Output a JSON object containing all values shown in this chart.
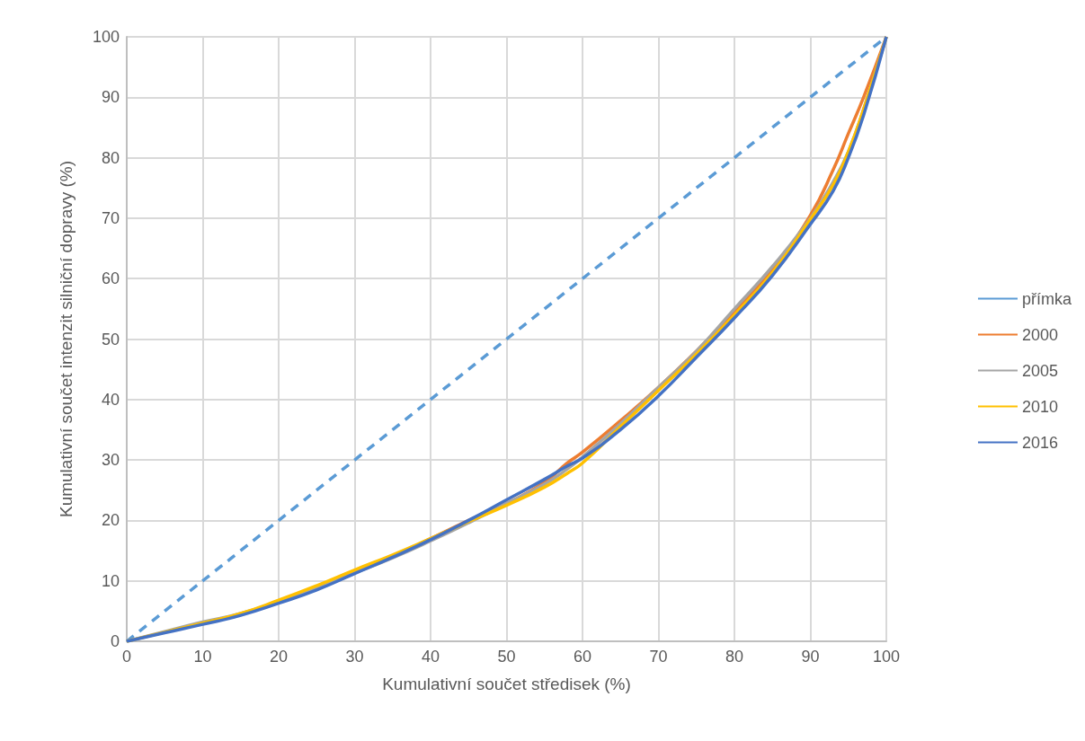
{
  "chart_data": {
    "type": "line",
    "xlabel": "Kumulativní součet středisek (%)",
    "ylabel": "Kumulativní součet intenzit silniční dopravy (%)",
    "xlim": [
      0,
      100
    ],
    "xticks": [
      0,
      10,
      20,
      30,
      40,
      50,
      60,
      70,
      80,
      90,
      100
    ],
    "ylim": [
      0,
      100
    ],
    "yticks": [
      0,
      10,
      20,
      30,
      40,
      50,
      60,
      70,
      80,
      90,
      100
    ],
    "grid": true,
    "legend": "right",
    "marker": "none",
    "series": [
      {
        "name": "přímka",
        "color": "#5b9bd5",
        "line_style": "dashed",
        "x": [
          0,
          100
        ],
        "values": [
          0,
          100
        ]
      },
      {
        "name": "2000",
        "color": "#ed7d31",
        "x": [
          20,
          25,
          30,
          35,
          40,
          45,
          50,
          55,
          58,
          60,
          65,
          70,
          75,
          80,
          85,
          90,
          93,
          95,
          97,
          100
        ],
        "values": [
          6.6,
          9,
          11.5,
          14,
          17,
          20,
          22.8,
          26.3,
          29.5,
          31.3,
          36.5,
          42,
          48,
          54.5,
          61.5,
          70.5,
          78,
          84,
          90,
          100
        ]
      },
      {
        "name": "2005",
        "color": "#a5a5a5",
        "x": [
          0,
          5,
          10,
          15,
          20,
          25,
          30,
          35,
          40,
          45,
          50,
          55,
          58,
          60,
          65,
          70,
          75,
          80,
          85,
          90,
          93,
          95,
          97,
          100
        ],
        "values": [
          0,
          1.6,
          3.2,
          4.6,
          6.6,
          8.9,
          11.3,
          13.8,
          16.6,
          19.6,
          22.8,
          26,
          28.5,
          30.5,
          36,
          42,
          48,
          55,
          62,
          70,
          76,
          81,
          88,
          100
        ]
      },
      {
        "name": "2010",
        "color": "#ffc000",
        "x": [
          0,
          5,
          10,
          15,
          20,
          25,
          30,
          35,
          40,
          45,
          50,
          55,
          58,
          60,
          65,
          70,
          75,
          80,
          85,
          90,
          93,
          95,
          97,
          100
        ],
        "values": [
          0,
          1.5,
          3,
          4.6,
          6.8,
          9.2,
          11.8,
          14.3,
          17,
          19.8,
          22.5,
          25.5,
          27.8,
          29.5,
          35.5,
          41.5,
          47.5,
          54,
          61,
          69.8,
          75.5,
          81,
          88,
          100
        ]
      },
      {
        "name": "2016",
        "color": "#4472c4",
        "x": [
          0,
          5,
          10,
          15,
          20,
          25,
          30,
          35,
          40,
          45,
          50,
          55,
          58,
          60,
          65,
          70,
          75,
          80,
          85,
          90,
          93,
          95,
          97,
          100
        ],
        "values": [
          0,
          1.4,
          2.8,
          4.3,
          6.3,
          8.5,
          11.2,
          13.9,
          16.8,
          20,
          23.4,
          26.8,
          29,
          30.3,
          35,
          40.6,
          47,
          53.5,
          60.5,
          69,
          74.5,
          80,
          87,
          100
        ]
      }
    ]
  }
}
